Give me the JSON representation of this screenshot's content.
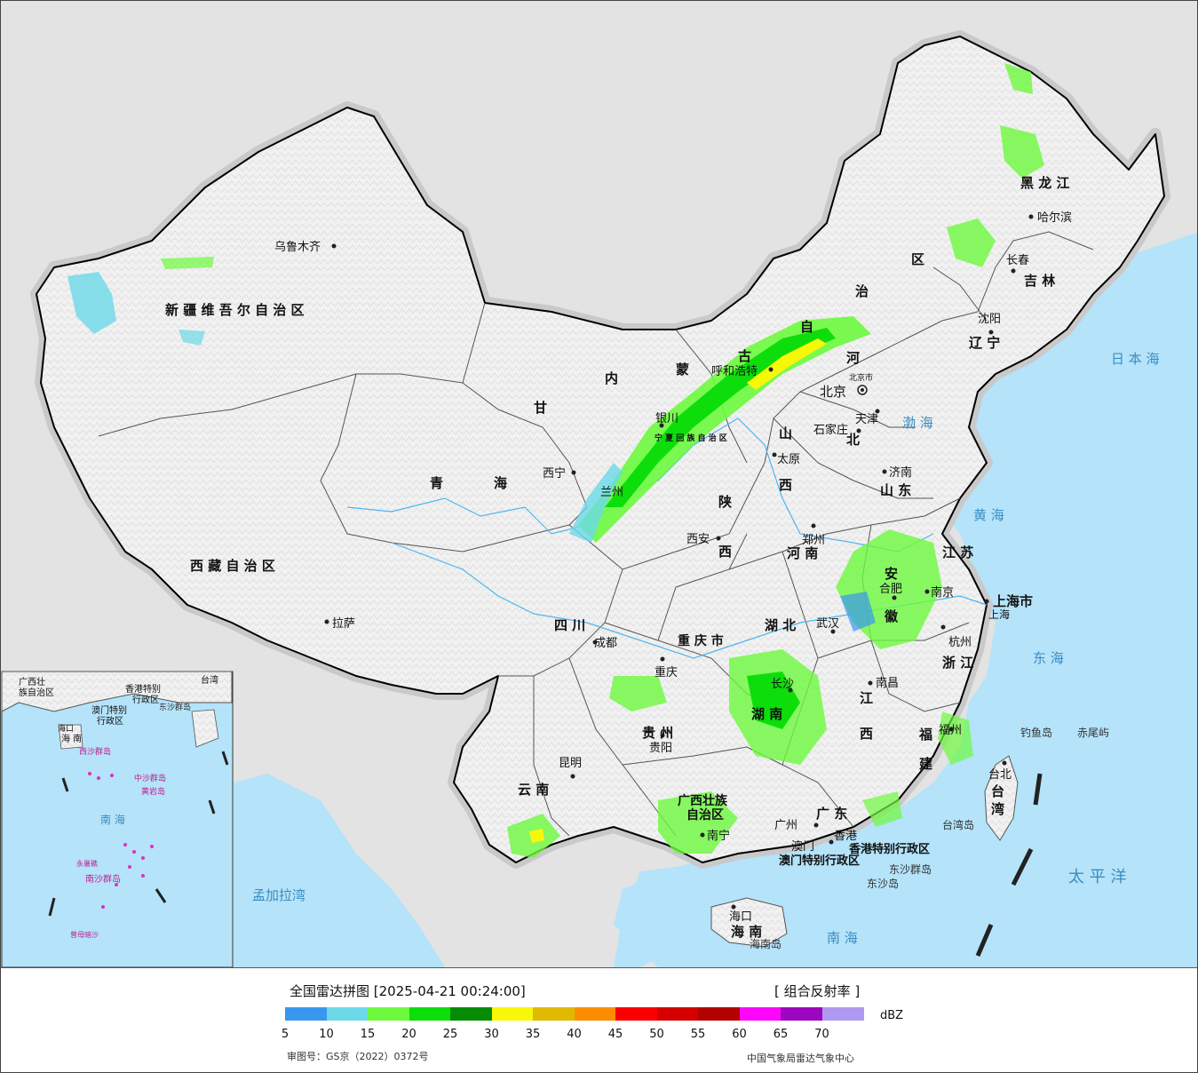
{
  "legend": {
    "title": "全国雷达拼图 [2025-04-21 00:24:00]",
    "product": "[ 组合反射率 ]",
    "unit": "dBZ",
    "review_number": "审图号：GS京（2022）0372号",
    "agency": "中国气象局雷达气象中心",
    "colors": [
      "#3a97f0",
      "#6cd9e8",
      "#6dfa3e",
      "#0edd0c",
      "#068c04",
      "#f7f70a",
      "#e0b901",
      "#fc8d00",
      "#fa0000",
      "#d40000",
      "#b30000",
      "#fc07fc",
      "#9c06c0",
      "#b099f0"
    ],
    "ticks": [
      "5",
      "10",
      "15",
      "20",
      "25",
      "30",
      "35",
      "40",
      "45",
      "50",
      "55",
      "60",
      "65",
      "70"
    ]
  },
  "labels": {
    "urumqi": "乌鲁木齐",
    "xinjiang": "新 疆 维 吾 尔 自 治 区",
    "tibet": "西 藏 自 治 区",
    "lhasa": "拉萨",
    "qinghai_a": "青",
    "qinghai_b": "海",
    "xining": "西宁",
    "gansu": "甘",
    "nm_nei": "内",
    "nm_meng": "蒙",
    "nm_gu": "古",
    "nm_zi": "自",
    "nm_zhi": "治",
    "nm_qu": "区",
    "hohhot": "呼和浩特",
    "yinchuan": "银川",
    "ningxia": "宁 夏 回 族 自 治 区",
    "lanzhou": "兰州",
    "shaanxi_a": "陕",
    "shaanxi_b": "西",
    "xian": "西安",
    "shanxi_a": "山",
    "shanxi_b": "西",
    "taiyuan": "太原",
    "shijiazhuang": "石家庄",
    "hebei_a": "河",
    "hebei_b": "北",
    "beijing": "北京",
    "beijing_city": "北京市",
    "tianjin": "天津",
    "tianjin_city": "天津",
    "heilongjiang": "黑 龙 江",
    "harbin": "哈尔滨",
    "changchun": "长春",
    "jilin": "吉 林",
    "shenyang": "沈阳",
    "liaoning": "辽 宁",
    "bohai": "渤 海",
    "jinan": "济南",
    "shandong": "山 东",
    "huanghai": "黄 海",
    "zhengzhou": "郑州",
    "henan": "河 南",
    "jiangsu": "江 苏",
    "anhui_a": "安",
    "anhui_b": "徽",
    "hefei": "合肥",
    "nanjing": "南京",
    "shanghai_city": "上海市",
    "shanghai": "上海",
    "hangzhou": "杭州",
    "zhejiang": "浙 江",
    "donghai": "东 海",
    "sichuan": "四 川",
    "chengdu": "成都",
    "chongqing_city": "重 庆 市",
    "chongqing": "重庆",
    "hubei": "湖 北",
    "wuhan": "武汉",
    "hunan": "湖 南",
    "changsha": "长沙",
    "jiangxi_a": "江",
    "jiangxi_b": "西",
    "nanchang": "南昌",
    "fujian_a": "福",
    "fujian_b": "建",
    "fuzhou": "福州",
    "guizhou": "贵 州",
    "guiyang": "贵阳",
    "yunnan": "云 南",
    "kunming": "昆明",
    "guangxi_a": "广西壮族",
    "guangxi_b": "自治区",
    "nanning": "南宁",
    "guangdong": "广 东",
    "guangzhou": "广州",
    "macau": "澳门",
    "hongkong": "香港",
    "hk_sar": "香港特别行政区",
    "macau_sar": "澳门特别行政区",
    "dongsha_islands": "东沙群岛",
    "dongsha_island": "东沙岛",
    "haikou": "海口",
    "hainan": "海 南",
    "hainan_island": "海南岛",
    "nanhai": "南 海",
    "taiwan_island": "台湾岛",
    "taipei": "台北",
    "taiwan_a": "台",
    "taiwan_b": "湾",
    "diaoyu": "钓鱼岛",
    "chiwei": "赤尾屿",
    "taipingyang": "太 平 洋",
    "riben": "日 本 海",
    "bay_bengal": "孟加拉湾",
    "inset_nanhai": "南 海",
    "inset_xisha": "西沙群岛",
    "inset_zhongsha": "中沙群岛",
    "inset_huangyan": "黄岩岛",
    "inset_nansha": "南沙群岛",
    "inset_zengmu": "曾母暗沙",
    "inset_yongshu": "永暑礁",
    "inset_dongsha": "东沙群岛",
    "inset_hk": "香港特别",
    "inset_hk2": "行政区",
    "inset_macau": "澳门特别",
    "inset_macau2": "行政区",
    "inset_gx": "广西壮",
    "inset_gx2": "族自治区",
    "inset_haikou": "海口",
    "inset_hainan": "海 南",
    "inset_taiwan": "台湾"
  }
}
